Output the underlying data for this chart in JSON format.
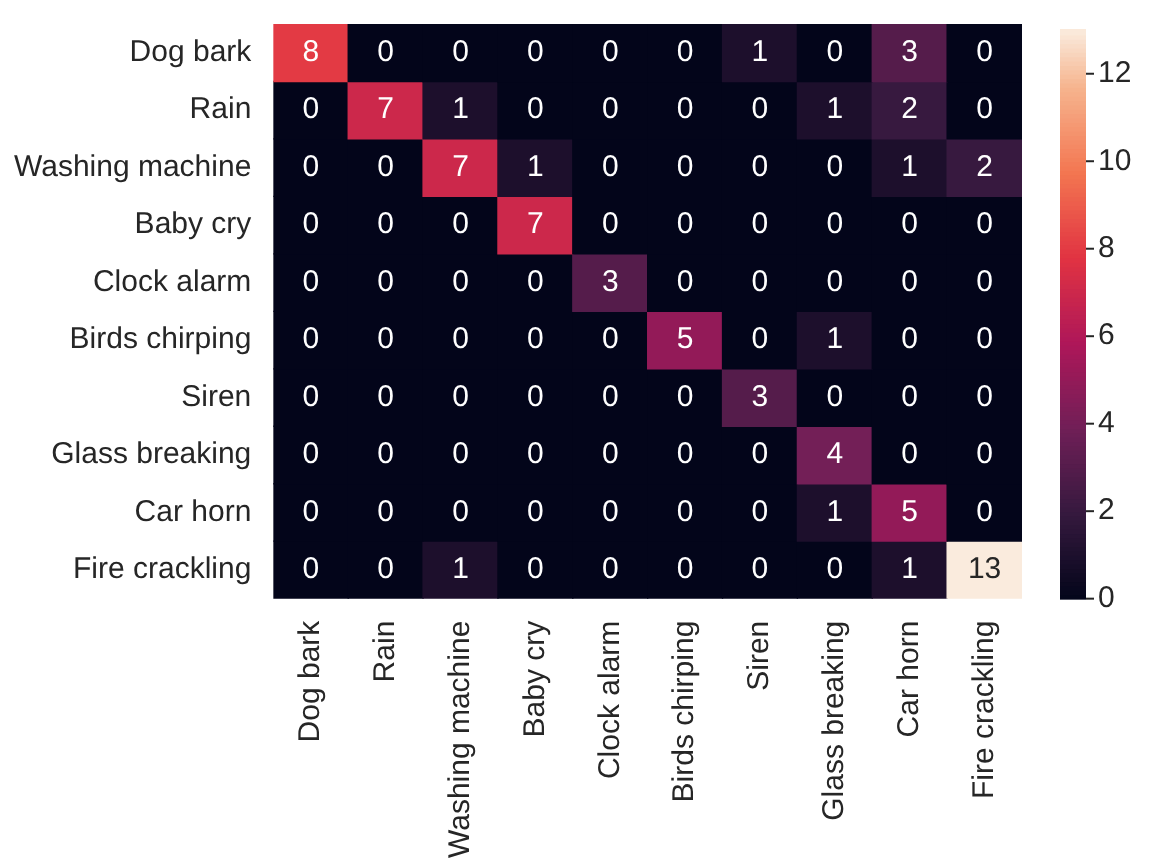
{
  "chart_data": {
    "type": "heatmap",
    "categories": [
      "Dog bark",
      "Rain",
      "Washing machine",
      "Baby cry",
      "Clock alarm",
      "Birds chirping",
      "Siren",
      "Glass breaking",
      "Car horn",
      "Fire crackling"
    ],
    "y_categories": [
      "Dog bark",
      "Rain",
      "Washing machine",
      "Baby cry",
      "Clock alarm",
      "Birds chirping",
      "Siren",
      "Glass breaking",
      "Car horn",
      "Fire crackling"
    ],
    "cells": [
      [
        8,
        0,
        0,
        0,
        0,
        0,
        1,
        0,
        3,
        0
      ],
      [
        0,
        7,
        1,
        0,
        0,
        0,
        0,
        1,
        2,
        0
      ],
      [
        0,
        0,
        7,
        1,
        0,
        0,
        0,
        0,
        1,
        2
      ],
      [
        0,
        0,
        0,
        7,
        0,
        0,
        0,
        0,
        0,
        0
      ],
      [
        0,
        0,
        0,
        0,
        3,
        0,
        0,
        0,
        0,
        0
      ],
      [
        0,
        0,
        0,
        0,
        0,
        5,
        0,
        1,
        0,
        0
      ],
      [
        0,
        0,
        0,
        0,
        0,
        0,
        3,
        0,
        0,
        0
      ],
      [
        0,
        0,
        0,
        0,
        0,
        0,
        0,
        4,
        0,
        0
      ],
      [
        0,
        0,
        0,
        0,
        0,
        0,
        0,
        1,
        5,
        0
      ],
      [
        0,
        0,
        1,
        0,
        0,
        0,
        0,
        0,
        1,
        13
      ]
    ],
    "clim": [
      0,
      13
    ],
    "cticks": [
      0,
      2,
      4,
      6,
      8,
      10,
      12
    ],
    "data_labels": true
  }
}
